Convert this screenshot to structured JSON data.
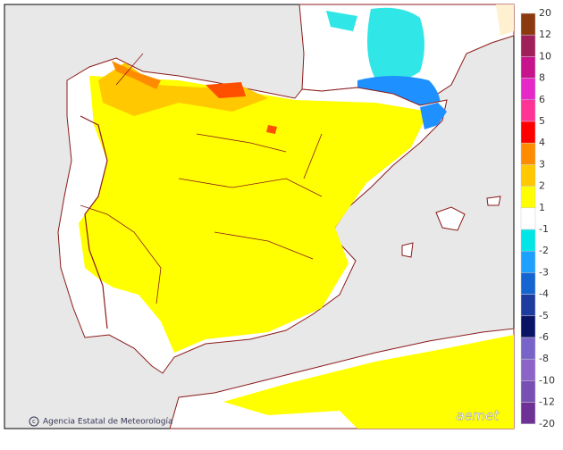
{
  "legend": {
    "labels": [
      "20",
      "12",
      "10",
      "8",
      "6",
      "5",
      "4",
      "3",
      "2",
      "1",
      "-1",
      "-2",
      "-3",
      "-4",
      "-5",
      "-6",
      "-8",
      "-10",
      "-12",
      "-20"
    ],
    "colors": [
      "#8b3a0f",
      "#a0205a",
      "#c8148c",
      "#e628c8",
      "#ff3296",
      "#ff0000",
      "#ff8c00",
      "#ffc800",
      "#ffff00",
      "#ffffff",
      "#00e6e6",
      "#1ea0ff",
      "#1464d2",
      "#1e3ca0",
      "#0a1464",
      "#7864c8",
      "#8c64c8",
      "#7850b4",
      "#6e3296"
    ]
  },
  "credits": {
    "agency": "Agencia Estatal de Meteorología",
    "logo": "aemet"
  }
}
